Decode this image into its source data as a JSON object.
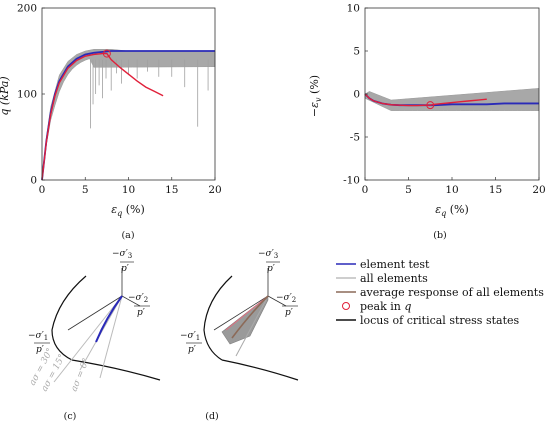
{
  "chart_data": [
    {
      "panel": "(a)",
      "type": "line",
      "xlabel": "εq (%)",
      "ylabel": "q (kPa)",
      "xlim": [
        0,
        20
      ],
      "ylim": [
        0,
        200
      ],
      "xticks": [
        0,
        5,
        10,
        15,
        20
      ],
      "yticks": [
        0,
        100,
        200
      ],
      "series": [
        {
          "name": "element test",
          "x": [
            0,
            0.5,
            1,
            1.5,
            2,
            3,
            4,
            5,
            6,
            7,
            8,
            10,
            12,
            14,
            16,
            18,
            20
          ],
          "y": [
            0,
            45,
            78,
            100,
            115,
            132,
            141,
            146,
            148,
            149,
            150,
            150,
            150,
            150,
            150,
            150,
            150
          ],
          "color": "#2a2ab8"
        },
        {
          "name": "average response of all elements",
          "x": [
            0,
            0.5,
            1,
            1.5,
            2,
            3,
            4,
            5,
            6,
            7,
            7.5,
            8,
            9,
            10,
            11,
            12,
            13,
            14
          ],
          "y": [
            0,
            44,
            76,
            98,
            113,
            130,
            139,
            144,
            146,
            147,
            147,
            140,
            131,
            123,
            115,
            108,
            103,
            98
          ],
          "color": "#e0203a"
        },
        {
          "name": "all elements",
          "x": [
            0,
            0.5,
            1,
            2,
            3,
            4,
            5,
            6,
            8,
            10,
            12,
            14,
            16,
            18,
            20
          ],
          "y": [
            0,
            50,
            85,
            122,
            138,
            146,
            150,
            152,
            152,
            150,
            150,
            150,
            150,
            150,
            150
          ],
          "color": "#9a9a9a"
        }
      ],
      "peak": {
        "x": 7.5,
        "y": 147
      }
    },
    {
      "panel": "(b)",
      "type": "line",
      "xlabel": "εq (%)",
      "ylabel": "−εv (%)",
      "xlim": [
        0,
        20
      ],
      "ylim": [
        -10,
        10
      ],
      "xticks": [
        0,
        5,
        10,
        15,
        20
      ],
      "yticks": [
        -10,
        -5,
        0,
        5,
        10
      ],
      "series": [
        {
          "name": "element test",
          "x": [
            0,
            0.5,
            1,
            2,
            3,
            4,
            5,
            6,
            7,
            8,
            10,
            12,
            14,
            16,
            18,
            20
          ],
          "y": [
            0,
            -0.5,
            -0.8,
            -1.1,
            -1.25,
            -1.3,
            -1.3,
            -1.3,
            -1.3,
            -1.3,
            -1.2,
            -1.2,
            -1.2,
            -1.1,
            -1.1,
            -1.1
          ],
          "color": "#2a2ab8"
        },
        {
          "name": "average response of all elements",
          "x": [
            0,
            0.5,
            1,
            2,
            3,
            4,
            5,
            6,
            7,
            7.5,
            8,
            9,
            10,
            11,
            12,
            13,
            14
          ],
          "y": [
            0,
            -0.5,
            -0.8,
            -1.1,
            -1.25,
            -1.3,
            -1.35,
            -1.35,
            -1.3,
            -1.3,
            -1.2,
            -1.1,
            -1.0,
            -0.9,
            -0.8,
            -0.7,
            -0.6
          ],
          "color": "#e0203a"
        }
      ],
      "peak": {
        "x": 7.5,
        "y": -1.3
      }
    }
  ],
  "panel_c": {
    "caption": "(c)",
    "axis1": "−σ′1/p′",
    "axis2": "−σ′2/p′",
    "axis3": "−σ′3/p′",
    "lode_labels": [
      "aσ = 30°",
      "aσ = 15°",
      "aσ = 0°"
    ]
  },
  "panel_d": {
    "caption": "(d)",
    "axis1": "−σ′1/p′",
    "axis2": "−σ′2/p′",
    "axis3": "−σ′3/p′"
  },
  "legend": {
    "items": [
      {
        "label": "element test",
        "kind": "line",
        "color": "#2a2ab8"
      },
      {
        "label": "all elements",
        "kind": "line",
        "color": "#b0b0b0"
      },
      {
        "label": "average response of all elements",
        "kind": "line",
        "color": "#8c6a58"
      },
      {
        "label": "peak in q",
        "kind": "circle",
        "color": "#e0203a"
      },
      {
        "label": "locus of critical stress states",
        "kind": "line",
        "color": "#111111"
      }
    ]
  }
}
